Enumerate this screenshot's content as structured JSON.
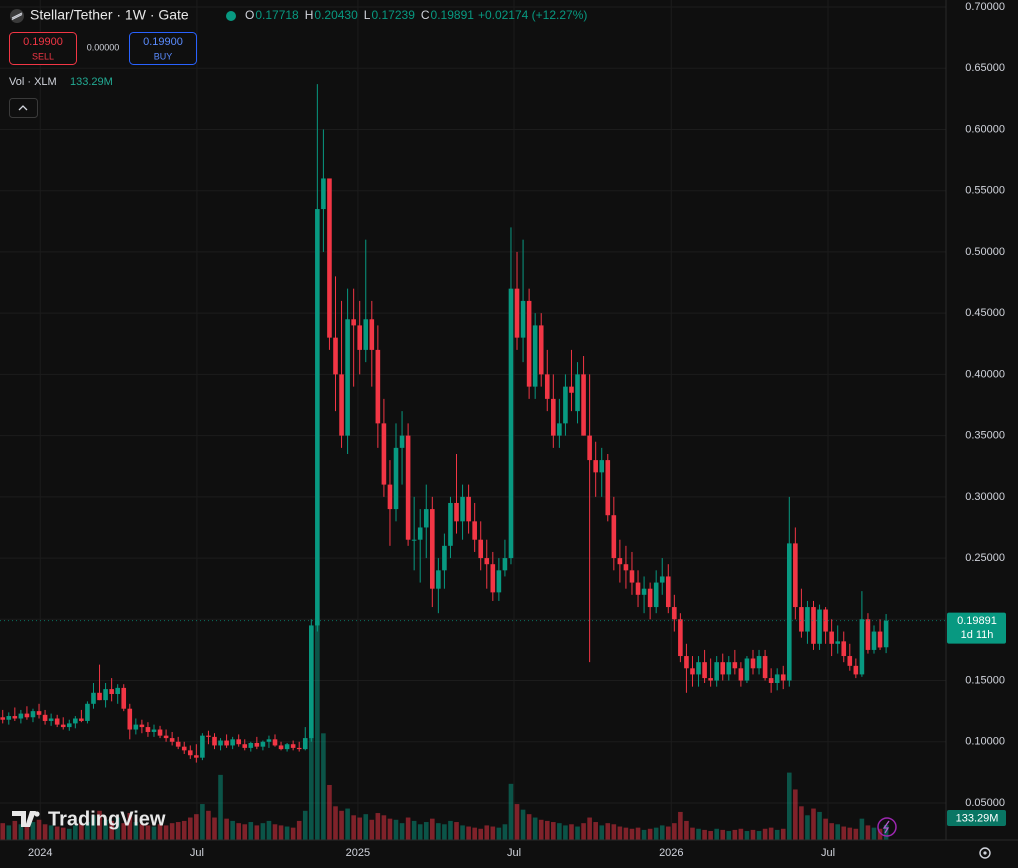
{
  "chart_data": {
    "type": "candlestick",
    "title": "Stellar/Tether · 1W · Gate",
    "ohlc": [
      {
        "label": "O",
        "value": "0.17718"
      },
      {
        "label": "H",
        "value": "0.20430"
      },
      {
        "label": "L",
        "value": "0.17239"
      },
      {
        "label": "C",
        "value": "0.19891"
      }
    ],
    "change": "+0.02174 (+12.27%)",
    "sell": {
      "price": "0.19900",
      "label": "SELL"
    },
    "spread": "0.00000",
    "buy": {
      "price": "0.19900",
      "label": "BUY"
    },
    "volume_title": "Vol · XLM",
    "volume_label": "133.29M",
    "last_price": {
      "label": "0.19891",
      "countdown": "1d 11h"
    },
    "brand": "TradingView",
    "up_color": "#089981",
    "down_color": "#f23645",
    "grid": true,
    "ylim": [
      0.05,
      0.7
    ],
    "yticks": [
      {
        "value": 0.7,
        "label": "0.70000"
      },
      {
        "value": 0.65,
        "label": "0.65000"
      },
      {
        "value": 0.6,
        "label": "0.60000"
      },
      {
        "value": 0.55,
        "label": "0.55000"
      },
      {
        "value": 0.5,
        "label": "0.50000"
      },
      {
        "value": 0.45,
        "label": "0.45000"
      },
      {
        "value": 0.4,
        "label": "0.40000"
      },
      {
        "value": 0.35,
        "label": "0.35000"
      },
      {
        "value": 0.3,
        "label": "0.30000"
      },
      {
        "value": 0.25,
        "label": "0.25000"
      },
      {
        "value": 0.2,
        "label": "0.20000"
      },
      {
        "value": 0.15,
        "label": "0.15000"
      },
      {
        "value": 0.1,
        "label": "0.10000"
      },
      {
        "value": 0.05,
        "label": "0.05000"
      }
    ],
    "xlim": [
      -0.45,
      155.9
    ],
    "xticks": [
      {
        "value": 6.2,
        "label": "2024"
      },
      {
        "value": 32.1,
        "label": "Jul"
      },
      {
        "value": 58.7,
        "label": "2025"
      },
      {
        "value": 84.5,
        "label": "Jul"
      },
      {
        "value": 110.5,
        "label": "2026"
      },
      {
        "value": 136.4,
        "label": "Jul"
      }
    ],
    "candles": [
      [
        0.12,
        0.126,
        0.115,
        0.118
      ],
      [
        0.118,
        0.124,
        0.114,
        0.121
      ],
      [
        0.121,
        0.128,
        0.117,
        0.119
      ],
      [
        0.119,
        0.126,
        0.115,
        0.123
      ],
      [
        0.123,
        0.129,
        0.118,
        0.12
      ],
      [
        0.12,
        0.127,
        0.116,
        0.125
      ],
      [
        0.125,
        0.131,
        0.119,
        0.122
      ],
      [
        0.122,
        0.126,
        0.114,
        0.117
      ],
      [
        0.117,
        0.123,
        0.113,
        0.119
      ],
      [
        0.119,
        0.122,
        0.112,
        0.114
      ],
      [
        0.114,
        0.12,
        0.11,
        0.112
      ],
      [
        0.112,
        0.118,
        0.109,
        0.115
      ],
      [
        0.115,
        0.121,
        0.111,
        0.119
      ],
      [
        0.119,
        0.126,
        0.116,
        0.117
      ],
      [
        0.117,
        0.133,
        0.115,
        0.131
      ],
      [
        0.131,
        0.148,
        0.127,
        0.14
      ],
      [
        0.14,
        0.163,
        0.134,
        0.134
      ],
      [
        0.134,
        0.148,
        0.128,
        0.143
      ],
      [
        0.143,
        0.152,
        0.133,
        0.139
      ],
      [
        0.139,
        0.147,
        0.131,
        0.144
      ],
      [
        0.144,
        0.147,
        0.125,
        0.127
      ],
      [
        0.127,
        0.131,
        0.102,
        0.11
      ],
      [
        0.11,
        0.119,
        0.106,
        0.114
      ],
      [
        0.114,
        0.118,
        0.107,
        0.112
      ],
      [
        0.112,
        0.116,
        0.104,
        0.108
      ],
      [
        0.108,
        0.114,
        0.104,
        0.11
      ],
      [
        0.11,
        0.113,
        0.103,
        0.105
      ],
      [
        0.105,
        0.11,
        0.1,
        0.103
      ],
      [
        0.103,
        0.108,
        0.097,
        0.1
      ],
      [
        0.1,
        0.104,
        0.094,
        0.096
      ],
      [
        0.096,
        0.1,
        0.09,
        0.093
      ],
      [
        0.093,
        0.097,
        0.086,
        0.089
      ],
      [
        0.089,
        0.098,
        0.083,
        0.087
      ],
      [
        0.087,
        0.107,
        0.085,
        0.105
      ],
      [
        0.105,
        0.109,
        0.098,
        0.104
      ],
      [
        0.104,
        0.107,
        0.094,
        0.097
      ],
      [
        0.097,
        0.103,
        0.093,
        0.101
      ],
      [
        0.101,
        0.106,
        0.095,
        0.097
      ],
      [
        0.097,
        0.104,
        0.094,
        0.102
      ],
      [
        0.102,
        0.106,
        0.096,
        0.098
      ],
      [
        0.098,
        0.102,
        0.093,
        0.095
      ],
      [
        0.095,
        0.1,
        0.092,
        0.099
      ],
      [
        0.099,
        0.104,
        0.094,
        0.096
      ],
      [
        0.096,
        0.101,
        0.093,
        0.1
      ],
      [
        0.1,
        0.105,
        0.095,
        0.102
      ],
      [
        0.102,
        0.106,
        0.096,
        0.097
      ],
      [
        0.097,
        0.1,
        0.093,
        0.094
      ],
      [
        0.094,
        0.099,
        0.092,
        0.098
      ],
      [
        0.098,
        0.101,
        0.093,
        0.095
      ],
      [
        0.095,
        0.1,
        0.092,
        0.094
      ],
      [
        0.094,
        0.112,
        0.093,
        0.103
      ],
      [
        0.103,
        0.2,
        0.1,
        0.195
      ],
      [
        0.195,
        0.637,
        0.19,
        0.535
      ],
      [
        0.535,
        0.6,
        0.5,
        0.56
      ],
      [
        0.56,
        0.56,
        0.42,
        0.43
      ],
      [
        0.43,
        0.48,
        0.37,
        0.4
      ],
      [
        0.4,
        0.46,
        0.34,
        0.35
      ],
      [
        0.35,
        0.47,
        0.335,
        0.445
      ],
      [
        0.445,
        0.47,
        0.39,
        0.44
      ],
      [
        0.44,
        0.46,
        0.4,
        0.42
      ],
      [
        0.42,
        0.51,
        0.41,
        0.445
      ],
      [
        0.445,
        0.46,
        0.39,
        0.42
      ],
      [
        0.42,
        0.44,
        0.34,
        0.36
      ],
      [
        0.36,
        0.38,
        0.3,
        0.31
      ],
      [
        0.31,
        0.33,
        0.26,
        0.29
      ],
      [
        0.29,
        0.36,
        0.28,
        0.34
      ],
      [
        0.34,
        0.37,
        0.31,
        0.35
      ],
      [
        0.35,
        0.36,
        0.26,
        0.265
      ],
      [
        0.265,
        0.3,
        0.24,
        0.265
      ],
      [
        0.265,
        0.29,
        0.23,
        0.275
      ],
      [
        0.275,
        0.31,
        0.25,
        0.29
      ],
      [
        0.29,
        0.3,
        0.21,
        0.225
      ],
      [
        0.225,
        0.25,
        0.205,
        0.24
      ],
      [
        0.24,
        0.27,
        0.225,
        0.26
      ],
      [
        0.26,
        0.3,
        0.25,
        0.295
      ],
      [
        0.295,
        0.335,
        0.27,
        0.28
      ],
      [
        0.28,
        0.31,
        0.265,
        0.3
      ],
      [
        0.3,
        0.31,
        0.27,
        0.28
      ],
      [
        0.28,
        0.295,
        0.255,
        0.265
      ],
      [
        0.265,
        0.28,
        0.24,
        0.25
      ],
      [
        0.25,
        0.265,
        0.225,
        0.245
      ],
      [
        0.245,
        0.255,
        0.215,
        0.222
      ],
      [
        0.222,
        0.25,
        0.215,
        0.24
      ],
      [
        0.24,
        0.265,
        0.235,
        0.25
      ],
      [
        0.25,
        0.52,
        0.245,
        0.47
      ],
      [
        0.47,
        0.5,
        0.42,
        0.43
      ],
      [
        0.43,
        0.51,
        0.41,
        0.46
      ],
      [
        0.46,
        0.47,
        0.38,
        0.39
      ],
      [
        0.39,
        0.45,
        0.38,
        0.44
      ],
      [
        0.44,
        0.45,
        0.39,
        0.4
      ],
      [
        0.4,
        0.42,
        0.37,
        0.38
      ],
      [
        0.38,
        0.4,
        0.34,
        0.35
      ],
      [
        0.35,
        0.38,
        0.34,
        0.36
      ],
      [
        0.36,
        0.4,
        0.35,
        0.39
      ],
      [
        0.39,
        0.42,
        0.37,
        0.385
      ],
      [
        0.37,
        0.41,
        0.36,
        0.4
      ],
      [
        0.4,
        0.415,
        0.35,
        0.35
      ],
      [
        0.35,
        0.4,
        0.165,
        0.33
      ],
      [
        0.33,
        0.345,
        0.3,
        0.32
      ],
      [
        0.32,
        0.34,
        0.3,
        0.33
      ],
      [
        0.33,
        0.335,
        0.28,
        0.285
      ],
      [
        0.285,
        0.3,
        0.24,
        0.25
      ],
      [
        0.25,
        0.265,
        0.23,
        0.245
      ],
      [
        0.245,
        0.26,
        0.225,
        0.24
      ],
      [
        0.24,
        0.255,
        0.22,
        0.23
      ],
      [
        0.23,
        0.24,
        0.21,
        0.22
      ],
      [
        0.22,
        0.235,
        0.205,
        0.225
      ],
      [
        0.225,
        0.23,
        0.2,
        0.21
      ],
      [
        0.21,
        0.24,
        0.205,
        0.23
      ],
      [
        0.23,
        0.25,
        0.22,
        0.235
      ],
      [
        0.235,
        0.245,
        0.205,
        0.21
      ],
      [
        0.21,
        0.22,
        0.19,
        0.2
      ],
      [
        0.2,
        0.205,
        0.165,
        0.17
      ],
      [
        0.17,
        0.18,
        0.14,
        0.16
      ],
      [
        0.16,
        0.17,
        0.145,
        0.155
      ],
      [
        0.155,
        0.17,
        0.145,
        0.165
      ],
      [
        0.165,
        0.175,
        0.148,
        0.152
      ],
      [
        0.152,
        0.168,
        0.145,
        0.15
      ],
      [
        0.15,
        0.17,
        0.145,
        0.165
      ],
      [
        0.165,
        0.172,
        0.15,
        0.155
      ],
      [
        0.155,
        0.17,
        0.15,
        0.165
      ],
      [
        0.165,
        0.175,
        0.155,
        0.16
      ],
      [
        0.16,
        0.165,
        0.145,
        0.15
      ],
      [
        0.15,
        0.17,
        0.148,
        0.168
      ],
      [
        0.168,
        0.175,
        0.155,
        0.16
      ],
      [
        0.16,
        0.175,
        0.155,
        0.17
      ],
      [
        0.17,
        0.175,
        0.15,
        0.152
      ],
      [
        0.152,
        0.16,
        0.14,
        0.148
      ],
      [
        0.148,
        0.16,
        0.142,
        0.155
      ],
      [
        0.155,
        0.162,
        0.143,
        0.15
      ],
      [
        0.15,
        0.3,
        0.145,
        0.262
      ],
      [
        0.262,
        0.275,
        0.2,
        0.21
      ],
      [
        0.21,
        0.225,
        0.185,
        0.19
      ],
      [
        0.19,
        0.215,
        0.18,
        0.21
      ],
      [
        0.21,
        0.215,
        0.175,
        0.18
      ],
      [
        0.18,
        0.212,
        0.175,
        0.208
      ],
      [
        0.208,
        0.21,
        0.18,
        0.19
      ],
      [
        0.19,
        0.2,
        0.17,
        0.18
      ],
      [
        0.18,
        0.195,
        0.172,
        0.182
      ],
      [
        0.182,
        0.19,
        0.165,
        0.17
      ],
      [
        0.17,
        0.18,
        0.158,
        0.162
      ],
      [
        0.162,
        0.168,
        0.152,
        0.155
      ],
      [
        0.155,
        0.223,
        0.153,
        0.2
      ],
      [
        0.2,
        0.205,
        0.172,
        0.175
      ],
      [
        0.175,
        0.195,
        0.172,
        0.19
      ],
      [
        0.19,
        0.2,
        0.175,
        0.177
      ],
      [
        0.17718,
        0.2043,
        0.17239,
        0.19891
      ]
    ],
    "volume": [
      150,
      130,
      170,
      140,
      120,
      160,
      180,
      140,
      130,
      120,
      110,
      100,
      130,
      150,
      160,
      220,
      260,
      180,
      170,
      200,
      150,
      240,
      160,
      140,
      130,
      120,
      140,
      130,
      150,
      160,
      170,
      200,
      230,
      320,
      260,
      200,
      580,
      190,
      170,
      150,
      140,
      160,
      130,
      150,
      170,
      140,
      130,
      120,
      110,
      170,
      260,
      1900,
      1950,
      950,
      490,
      300,
      260,
      280,
      220,
      200,
      230,
      180,
      240,
      220,
      190,
      180,
      150,
      200,
      170,
      140,
      160,
      190,
      150,
      140,
      170,
      160,
      130,
      120,
      110,
      100,
      130,
      120,
      110,
      140,
      500,
      320,
      270,
      230,
      200,
      180,
      170,
      160,
      150,
      130,
      140,
      120,
      150,
      200,
      160,
      130,
      150,
      140,
      120,
      110,
      100,
      110,
      90,
      100,
      110,
      130,
      120,
      150,
      250,
      170,
      110,
      100,
      90,
      80,
      100,
      90,
      80,
      90,
      100,
      80,
      90,
      80,
      100,
      110,
      90,
      100,
      600,
      450,
      300,
      220,
      280,
      250,
      190,
      150,
      140,
      120,
      110,
      100,
      190,
      130,
      110,
      100,
      133.29
    ]
  }
}
